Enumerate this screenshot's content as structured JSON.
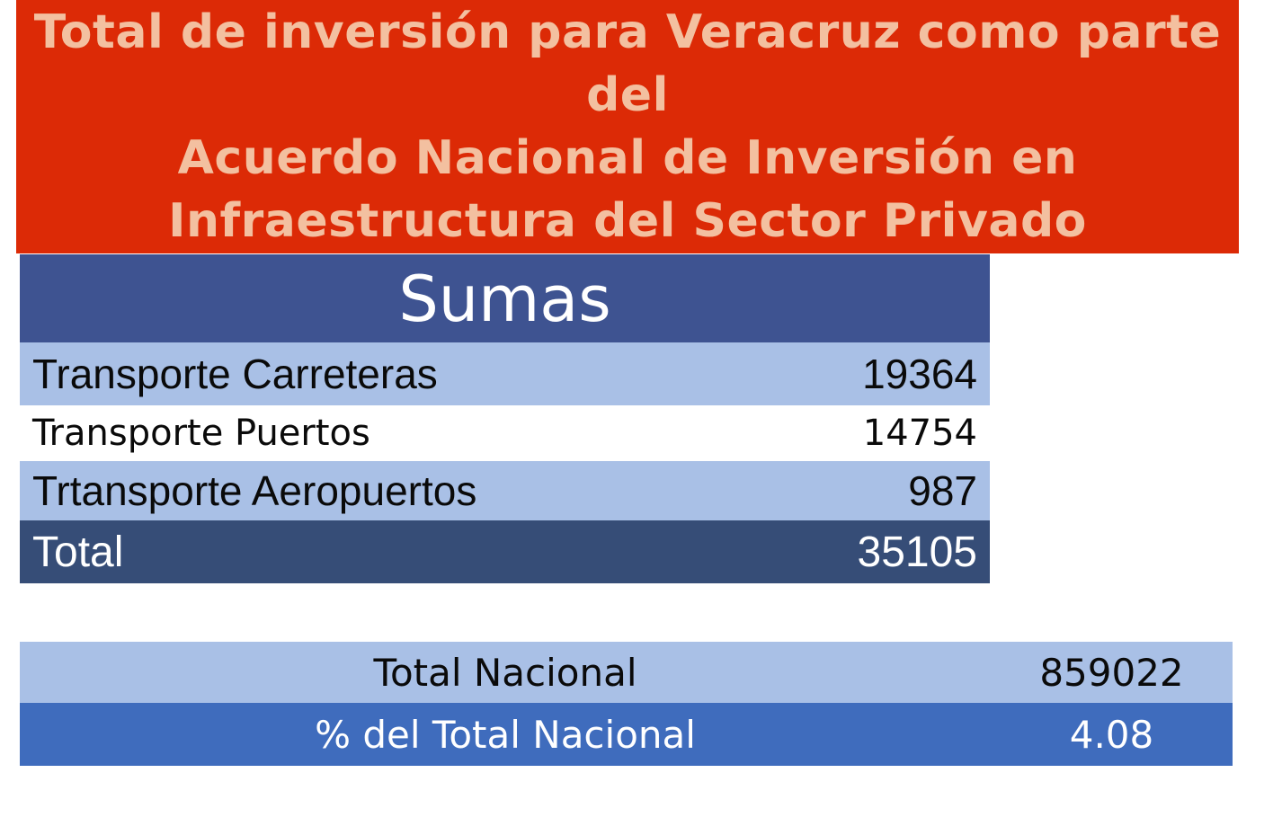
{
  "banner": {
    "lines": [
      "Total de inversión para Veracruz como parte",
      "del",
      "Acuerdo Nacional de Inversión en",
      "Infraestructura del Sector Privado"
    ]
  },
  "sumas": {
    "header": "Sumas",
    "rows": [
      {
        "label": "Transporte Carreteras",
        "value": "19364"
      },
      {
        "label": "Transporte Puertos",
        "value": "14754"
      },
      {
        "label": "Trtansporte Aeropuertos",
        "value": "987"
      },
      {
        "label": "Total",
        "value": "35105"
      }
    ]
  },
  "national": {
    "rows": [
      {
        "label": "Total Nacional",
        "value": "859022"
      },
      {
        "label": "% del Total Nacional",
        "value": "4.08"
      }
    ]
  },
  "colors": {
    "banner_bg": "#dc2a06",
    "banner_text": "#f3c0a0",
    "header_bg": "#3e5391",
    "light_row": "#a9c0e6",
    "total_row": "#364d77",
    "pct_row": "#3f6cbd"
  }
}
